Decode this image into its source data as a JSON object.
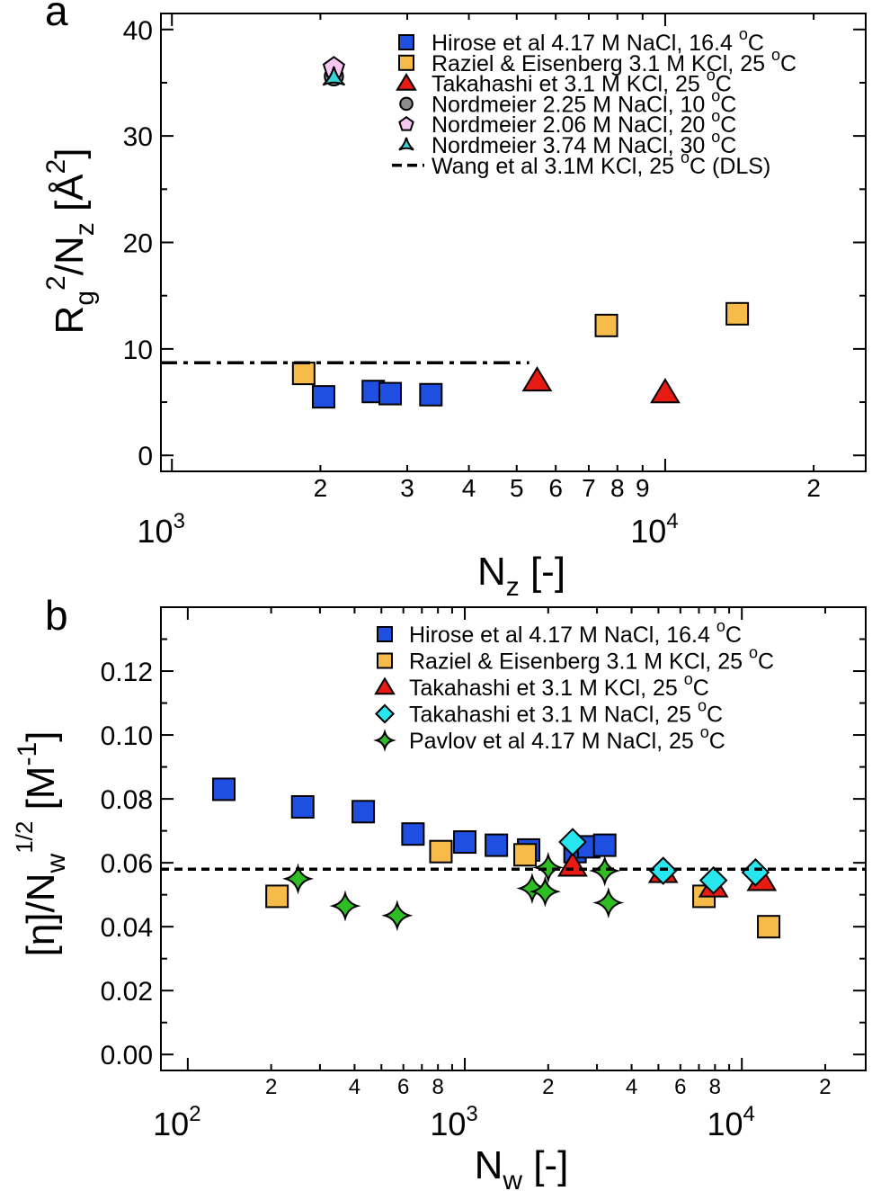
{
  "colors": {
    "hirose": "#1f4fe0",
    "raziel": "#f7bb4a",
    "takahashi_kcl": "#e81a14",
    "takahashi_nacl": "#28e6f0",
    "pavlov": "#2ebd22",
    "nordmeier_10": "#8c8c8c",
    "nordmeier_20": "#f7c6ee",
    "nordmeier_30": "#38d4da",
    "reference_line": "#000000"
  },
  "chart_data": [
    {
      "panel_label": "a",
      "type": "scatter",
      "xscale": "log",
      "xlim": [
        950,
        25500
      ],
      "ylim": [
        -1.5,
        41.5
      ],
      "xlabel_main": "N",
      "xlabel_sub": "z",
      "xlabel_rest": " [-]",
      "ylabel": {
        "p1": "R",
        "p1_sub": "g",
        "p1_sup": "2",
        "p2": "/N",
        "p2_sub": "z",
        "p3": " [Å",
        "p3_sup": "2",
        "p4": "]"
      },
      "y_ticks": [
        0,
        10,
        20,
        30,
        40
      ],
      "y_tick_labels": [
        "0",
        "10",
        "20",
        "30",
        "40"
      ],
      "x_major_ticks": [
        1000,
        10000
      ],
      "x_major_tick_labels": [
        {
          "base": "10",
          "exp": "3"
        },
        {
          "base": "10",
          "exp": "4"
        }
      ],
      "x_minor_ticks": [
        2000,
        3000,
        4000,
        5000,
        6000,
        7000,
        8000,
        9000,
        20000
      ],
      "x_minor_tick_labels": [
        "2",
        "3",
        "4",
        "5",
        "6",
        "7",
        "8",
        "9",
        "2"
      ],
      "legend_position": "top-right",
      "series": [
        {
          "name": "Hirose et al 4.17 M NaCl, 16.4 ",
          "sup": "o",
          "unit": "C",
          "marker": "square",
          "color_key": "hirose",
          "x": [
            2030,
            2560,
            2770,
            3350
          ],
          "y": [
            5.5,
            6.0,
            5.8,
            5.7
          ]
        },
        {
          "name": "Raziel & Eisenberg  3.1 M KCl, 25 ",
          "sup": "o",
          "unit": "C",
          "marker": "square",
          "color_key": "raziel",
          "x": [
            1850,
            7600,
            14000
          ],
          "y": [
            7.7,
            12.2,
            13.3
          ]
        },
        {
          "name": "Takahashi et  3.1 M KCl, 25 ",
          "sup": "o",
          "unit": "C",
          "marker": "triangle",
          "color_key": "takahashi_kcl",
          "x": [
            5500,
            10000
          ],
          "y": [
            7.0,
            5.9
          ]
        },
        {
          "name": "Nordmeier  2.25 M NaCl, 10 ",
          "sup": "o",
          "unit": "C",
          "marker": "circle",
          "color_key": "nordmeier_10",
          "x": [
            2130
          ],
          "y": [
            35.6
          ]
        },
        {
          "name": "Nordmeier  2.06 M NaCl, 20 ",
          "sup": "o",
          "unit": "C",
          "marker": "pentagon",
          "color_key": "nordmeier_20",
          "x": [
            2130
          ],
          "y": [
            36.4
          ]
        },
        {
          "name": " Nordmeier  3.74 M NaCl, 30 ",
          "sup": "o",
          "unit": "C",
          "marker": "tri3",
          "color_key": "nordmeier_30",
          "x": [
            2130
          ],
          "y": [
            35.5
          ]
        },
        {
          "name": " Wang et al 3.1M KCl,  25 ",
          "sup": "o",
          "unit": "C (DLS)",
          "marker": "dashdot",
          "color_key": "reference_line",
          "x": [
            950,
            5300
          ],
          "y": [
            8.7,
            8.7
          ]
        }
      ]
    },
    {
      "panel_label": "b",
      "type": "scatter",
      "xscale": "log",
      "xlim": [
        80,
        28000
      ],
      "ylim": [
        -0.005,
        0.14
      ],
      "xlabel_main": "N",
      "xlabel_sub": "w",
      "xlabel_rest": " [-]",
      "ylabel": {
        "p1": "[η]/N",
        "p1_sub": "w",
        "p1_sup": "1/2",
        "p2": " [M",
        "p2_sup": "-1",
        "p3": "]"
      },
      "y_ticks": [
        0,
        0.02,
        0.04,
        0.06,
        0.08,
        0.1,
        0.12
      ],
      "y_tick_labels": [
        "0.00",
        "0.02",
        "0.04",
        "0.06",
        "0.08",
        "0.10",
        "0.12"
      ],
      "x_major_ticks": [
        100,
        1000,
        10000
      ],
      "x_major_tick_labels": [
        {
          "base": "10",
          "exp": "2"
        },
        {
          "base": "10",
          "exp": "3"
        },
        {
          "base": "10",
          "exp": "4"
        }
      ],
      "x_minor_ticks": [
        200,
        300,
        400,
        500,
        600,
        700,
        800,
        900,
        2000,
        3000,
        4000,
        5000,
        6000,
        7000,
        8000,
        9000,
        20000
      ],
      "x_minor_tick_labels": [
        "2",
        "",
        "4",
        "",
        "6",
        "",
        "8",
        "",
        "2",
        "",
        "4",
        "",
        "6",
        "",
        "8",
        "",
        "2"
      ],
      "legend_position": "top-right",
      "series": [
        {
          "name": "Hirose et al 4.17 M NaCl, 16.4 ",
          "sup": "o",
          "unit": "C",
          "marker": "square",
          "color_key": "hirose",
          "x": [
            135,
            260,
            430,
            650,
            1000,
            1300,
            1700,
            2500,
            2800,
            3200
          ],
          "y": [
            0.083,
            0.0775,
            0.076,
            0.069,
            0.0665,
            0.0655,
            0.064,
            0.0635,
            0.065,
            0.0655
          ]
        },
        {
          "name": "Raziel & Eisenberg  3.1 M KCl, 25 ",
          "sup": "o",
          "unit": "C",
          "marker": "square",
          "color_key": "raziel",
          "x": [
            210,
            820,
            1650,
            7300,
            12500
          ],
          "y": [
            0.0495,
            0.0635,
            0.0625,
            0.0495,
            0.04
          ]
        },
        {
          "name": "Takahashi et  3.1 M KCl, 25 ",
          "sup": "o",
          "unit": "C",
          "marker": "triangle",
          "color_key": "takahashi_kcl",
          "x": [
            2450,
            5200,
            7900,
            11800
          ],
          "y": [
            0.059,
            0.057,
            0.0525,
            0.0545
          ]
        },
        {
          "name": "Takahashi et  3.1 M NaCl, 25 ",
          "sup": "o",
          "unit": "C",
          "marker": "diamond",
          "color_key": "takahashi_nacl",
          "x": [
            2450,
            5200,
            7900,
            11200
          ],
          "y": [
            0.0665,
            0.0575,
            0.0545,
            0.057
          ]
        },
        {
          "name": " Pavlov et al  4.17 M NaCl, 25 ",
          "sup": "o",
          "unit": "C",
          "marker": "star4",
          "color_key": "pavlov",
          "x": [
            250,
            370,
            570,
            1750,
            1950,
            2000,
            3200,
            3300
          ],
          "y": [
            0.055,
            0.0465,
            0.0435,
            0.052,
            0.051,
            0.0585,
            0.0575,
            0.0475
          ]
        },
        {
          "name": "",
          "sup": "",
          "unit": "",
          "marker": "dashed",
          "color_key": "reference_line",
          "x": [
            80,
            28000
          ],
          "y": [
            0.058,
            0.058
          ]
        }
      ]
    }
  ]
}
